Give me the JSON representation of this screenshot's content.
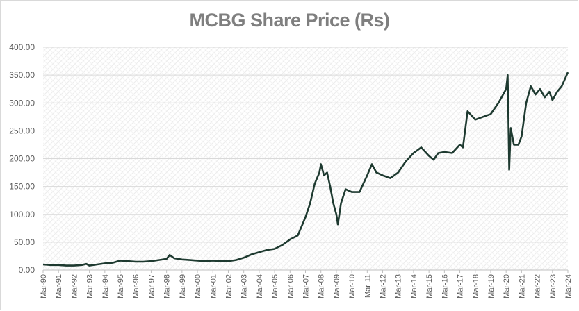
{
  "chart_data": {
    "type": "line",
    "title": "MCBG Share Price (Rs)",
    "xlabel": "",
    "ylabel": "",
    "ylim": [
      0,
      400
    ],
    "yticks": [
      "0.00",
      "50.00",
      "100.00",
      "150.00",
      "200.00",
      "250.00",
      "300.00",
      "350.00",
      "400.00"
    ],
    "xticks": [
      "Mar-90",
      "Mar-91",
      "Mar-92",
      "Mar-93",
      "Mar-94",
      "Mar-95",
      "Mar-96",
      "Mar-97",
      "Mar-98",
      "Mar-99",
      "Mar-00",
      "Mar-01",
      "Mar-02",
      "Mar-03",
      "Mar-04",
      "Mar-05",
      "Mar-06",
      "Mar-07",
      "Mar-08",
      "Mar-09",
      "Mar-10",
      "Mar-11",
      "Mar-12",
      "Mar-13",
      "Mar-14",
      "Mar-15",
      "Mar-16",
      "Mar-17",
      "Mar-18",
      "Mar-19",
      "Mar-20",
      "Mar-21",
      "Mar-22",
      "Mar-23",
      "Mar-24"
    ],
    "grid": true,
    "legend": "none",
    "line_color": "#1e3a30",
    "series": [
      {
        "x": [
          1990.0,
          1990.5,
          1991.0,
          1991.5,
          1992.0,
          1992.5,
          1992.8,
          1993.0,
          1993.5,
          1994.0,
          1994.5,
          1995.0,
          1995.5,
          1996.0,
          1996.5,
          1997.0,
          1997.5,
          1998.0,
          1998.2,
          1998.5,
          1999.0,
          1999.5,
          2000.0,
          2000.5,
          2001.0,
          2001.5,
          2002.0,
          2002.5,
          2003.0,
          2003.5,
          2004.0,
          2004.5,
          2005.0,
          2005.5,
          2006.0,
          2006.5,
          2007.0,
          2007.3,
          2007.6,
          2007.9,
          2008.0,
          2008.2,
          2008.4,
          2008.6,
          2008.8,
          2009.0,
          2009.1,
          2009.3,
          2009.6,
          2010.0,
          2010.5,
          2011.0,
          2011.3,
          2011.6,
          2012.0,
          2012.5,
          2013.0,
          2013.5,
          2014.0,
          2014.5,
          2015.0,
          2015.3,
          2015.6,
          2016.0,
          2016.5,
          2017.0,
          2017.2,
          2017.5,
          2018.0,
          2018.5,
          2019.0,
          2019.5,
          2020.0,
          2020.1,
          2020.2,
          2020.3,
          2020.5,
          2020.8,
          2021.0,
          2021.3,
          2021.6,
          2021.9,
          2022.2,
          2022.5,
          2022.8,
          2023.0,
          2023.3,
          2023.6,
          2024.0
        ],
        "values": [
          10,
          9,
          9,
          8,
          8,
          9,
          11,
          8,
          10,
          12,
          13,
          17,
          16,
          15,
          15,
          16,
          18,
          20,
          27,
          21,
          19,
          18,
          17,
          16,
          17,
          16,
          16,
          18,
          22,
          28,
          32,
          36,
          38,
          45,
          55,
          62,
          95,
          120,
          155,
          175,
          190,
          170,
          175,
          150,
          120,
          100,
          82,
          120,
          145,
          140,
          140,
          170,
          190,
          175,
          170,
          165,
          175,
          195,
          210,
          220,
          205,
          198,
          210,
          212,
          210,
          225,
          220,
          285,
          270,
          275,
          280,
          300,
          325,
          350,
          180,
          255,
          225,
          225,
          240,
          300,
          330,
          315,
          325,
          310,
          320,
          305,
          320,
          330,
          355
        ]
      }
    ]
  }
}
